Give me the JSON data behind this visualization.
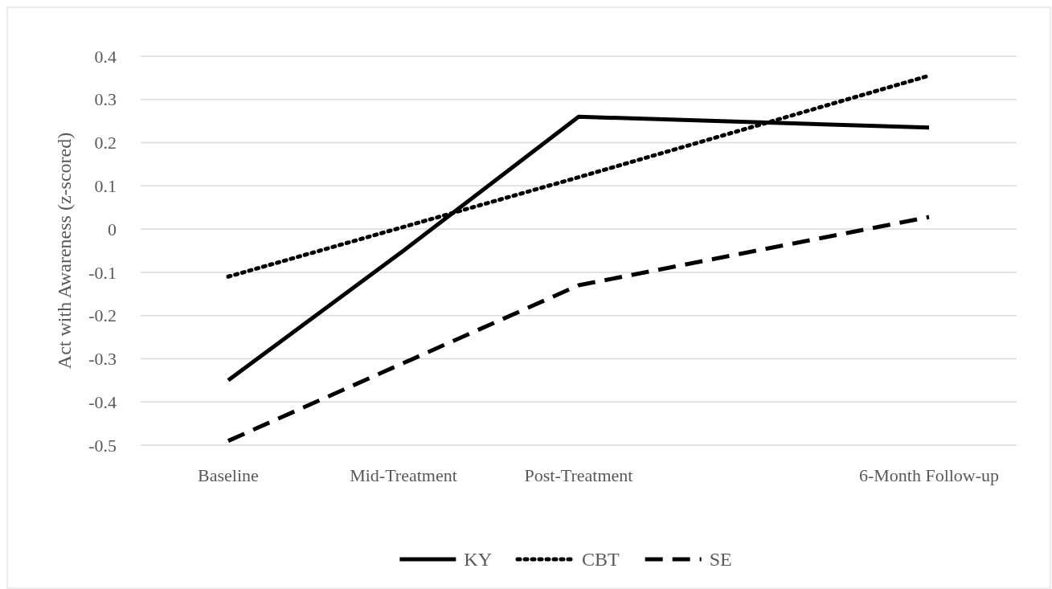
{
  "chart_data": {
    "type": "line",
    "ylabel": "Act with Awareness (z-scored)",
    "categories": [
      "Baseline",
      "Mid-Treatment",
      "Post-Treatment",
      null,
      "6-Month Follow-up"
    ],
    "series": [
      {
        "name": "KY",
        "color": "#000000",
        "line_style": "solid",
        "values": [
          -0.35,
          -0.05,
          0.26,
          null,
          0.235
        ]
      },
      {
        "name": "CBT",
        "color": "#000000",
        "line_style": "dotted",
        "values": [
          -0.11,
          0.005,
          0.12,
          null,
          0.355
        ]
      },
      {
        "name": "SE",
        "color": "#000000",
        "line_style": "dashed",
        "values": [
          -0.49,
          -0.31,
          -0.13,
          null,
          0.028
        ]
      }
    ],
    "ylim": [
      -0.5,
      0.4
    ],
    "yticks": [
      -0.5,
      -0.4,
      -0.3,
      -0.2,
      -0.1,
      0,
      0.1,
      0.2,
      0.3,
      0.4
    ],
    "grid": "y",
    "legend": "bottom",
    "marker": "none"
  }
}
